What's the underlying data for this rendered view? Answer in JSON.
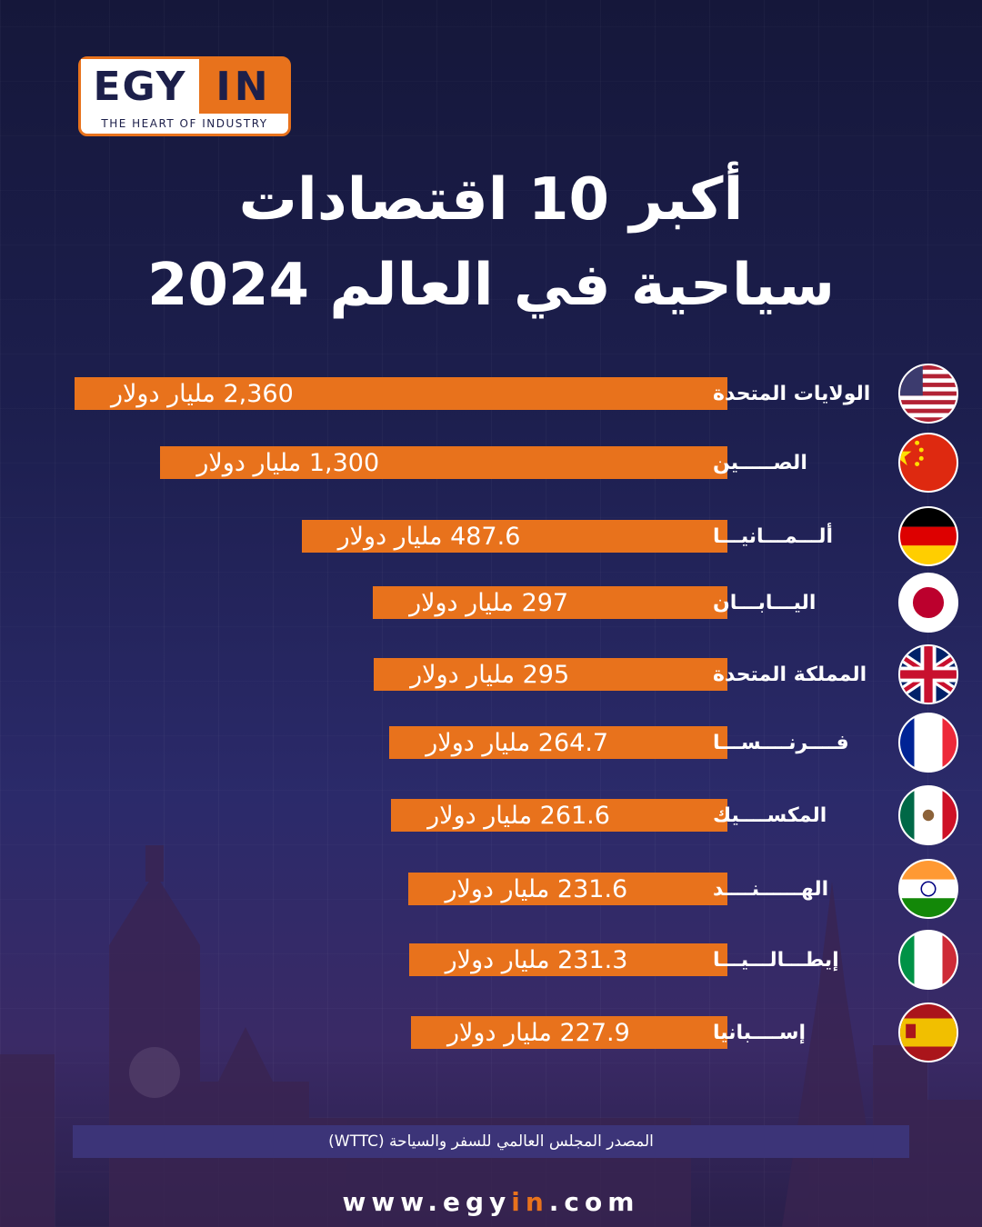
{
  "brand": {
    "logo_left": "EGY",
    "logo_right": "IN",
    "tagline": "THE HEART OF INDUSTRY",
    "accent_color": "#e8721c",
    "navy_color": "#1c1f4a"
  },
  "title": {
    "line1": "أكبر 10 اقتصادات",
    "line2": "سياحية في العالم 2024"
  },
  "chart_data": {
    "type": "bar",
    "orientation": "horizontal",
    "bar_color": "#e8721c",
    "categories": [
      "الولايات المتحدة",
      "الصـــــين",
      "ألـــمـــانيـــا",
      "اليـــابـــان",
      "المملكة المتحدة",
      "فــــرنــــســـا",
      "المكســــيك",
      "الهــــــنــــد",
      "إيطـــالـــيـــا",
      "إســــبانيا"
    ],
    "values": [
      2360,
      1300,
      487.6,
      297,
      295,
      264.7,
      261.6,
      231.6,
      231.3,
      227.9
    ],
    "value_labels": [
      "2,360 مليار دولار",
      "1,300 مليار دولار",
      "487.6 مليار دولار",
      "297 مليار دولار",
      "295 مليار دولار",
      "264.7 مليار دولار",
      "261.6 مليار دولار",
      "231.6 مليار دولار",
      "231.3 مليار دولار",
      "227.9 مليار دولار"
    ],
    "flags": [
      "usa-flag-icon",
      "china-flag-icon",
      "germany-flag-icon",
      "japan-flag-icon",
      "uk-flag-icon",
      "france-flag-icon",
      "mexico-flag-icon",
      "india-flag-icon",
      "italy-flag-icon",
      "spain-flag-icon"
    ],
    "title": "",
    "xlabel": "",
    "ylabel": ""
  },
  "footer": {
    "source": "المصدر المجلس العالمي للسفر والسياحة (WTTC)",
    "website_pre": "www.egy",
    "website_accent": "in",
    "website_post": ".com"
  }
}
